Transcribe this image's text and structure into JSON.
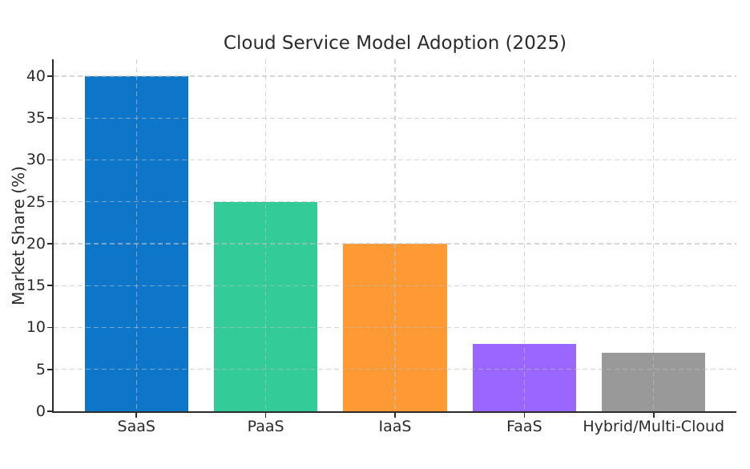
{
  "chart_data": {
    "type": "bar",
    "title": "Cloud Service Model Adoption (2025)",
    "ylabel": "Market Share (%)",
    "xlabel": "",
    "categories": [
      "SaaS",
      "PaaS",
      "IaaS",
      "FaaS",
      "Hybrid/Multi-Cloud"
    ],
    "values": [
      40,
      25,
      20,
      8,
      7
    ],
    "bar_colors": [
      "#0d76c9",
      "#33cc99",
      "#ff9933",
      "#9966ff",
      "#999999"
    ],
    "yticks": [
      0,
      5,
      10,
      15,
      20,
      25,
      30,
      35,
      40
    ],
    "ylim": [
      0,
      42
    ],
    "bar_width_fraction": 0.8,
    "grid": {
      "visible": true,
      "linestyle": "dashed",
      "axes": "both"
    },
    "legend": "none",
    "colors": {
      "grid": "#bebebe",
      "axis": "#2b2b2b",
      "text": "#2b2b2b",
      "background": "#ffffff"
    }
  }
}
